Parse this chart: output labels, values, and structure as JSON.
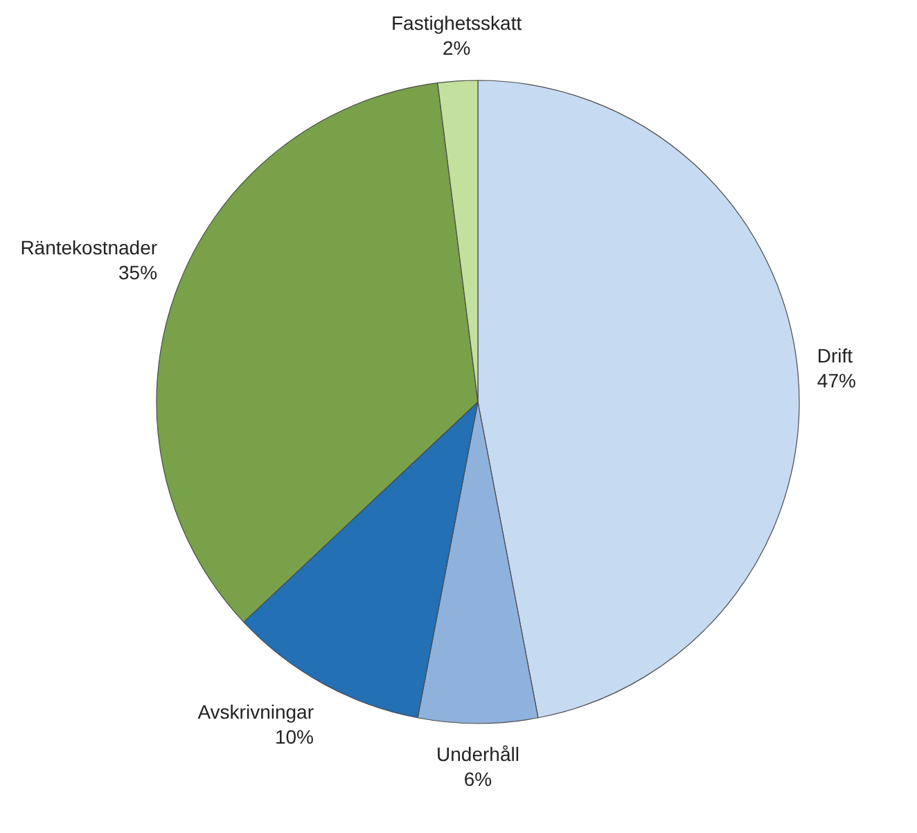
{
  "chart_data": {
    "type": "pie",
    "categories": [
      "Drift",
      "Underhåll",
      "Avskrivningar",
      "Räntekostnader",
      "Fastighetsskatt"
    ],
    "values": [
      47,
      6,
      10,
      35,
      2
    ],
    "colors": [
      "#c6daf1",
      "#8fb2dc",
      "#2370b4",
      "#78a14a",
      "#c4e09f"
    ],
    "value_labels": [
      "47%",
      "6%",
      "10%",
      "35%",
      "2%"
    ],
    "legend": false
  }
}
